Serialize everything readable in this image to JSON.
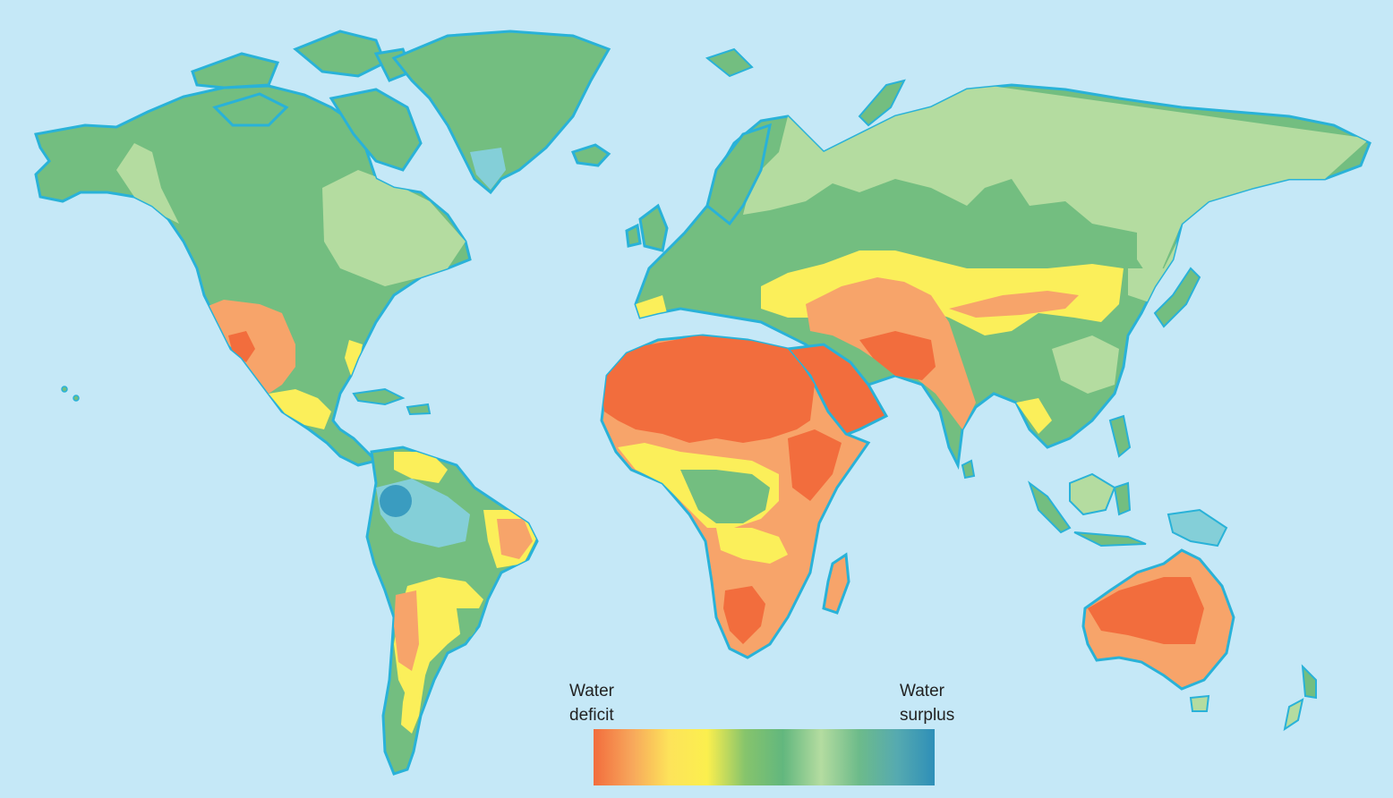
{
  "legend": {
    "low_label_line1": "Water",
    "low_label_line2": "deficit",
    "high_label_line1": "Water",
    "high_label_line2": "surplus",
    "gradient_stops": [
      "#f26d3d",
      "#f7a65b",
      "#fde35a",
      "#fbef4e",
      "#86c46c",
      "#62b77e",
      "#b4dca0",
      "#6dbb8a",
      "#56aab0",
      "#2e8fb8"
    ]
  },
  "colors": {
    "ocean": "#c5e8f7",
    "coastline": "#29b2d8",
    "extreme_deficit": "#f26d3d",
    "deficit": "#f7a46a",
    "slight_deficit": "#fbef5a",
    "balanced": "#73be80",
    "slight_surplus": "#b4dca0",
    "surplus": "#84cfd8",
    "extreme_surplus": "#3a9cc0"
  }
}
